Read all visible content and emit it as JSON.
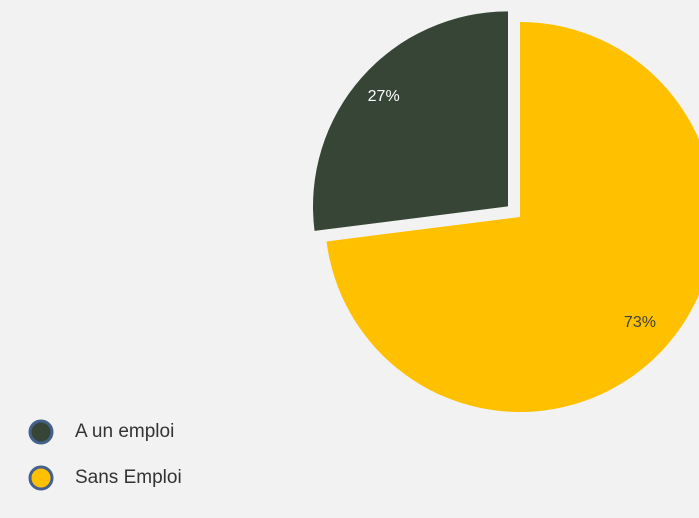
{
  "chart_data": {
    "type": "pie",
    "categories": [
      "A un emploi",
      "Sans Emploi"
    ],
    "values": [
      27,
      73
    ],
    "value_labels": [
      "27%",
      "73%"
    ],
    "colors": [
      "#374537",
      "#ffc000"
    ],
    "legend": "bottom-left"
  }
}
